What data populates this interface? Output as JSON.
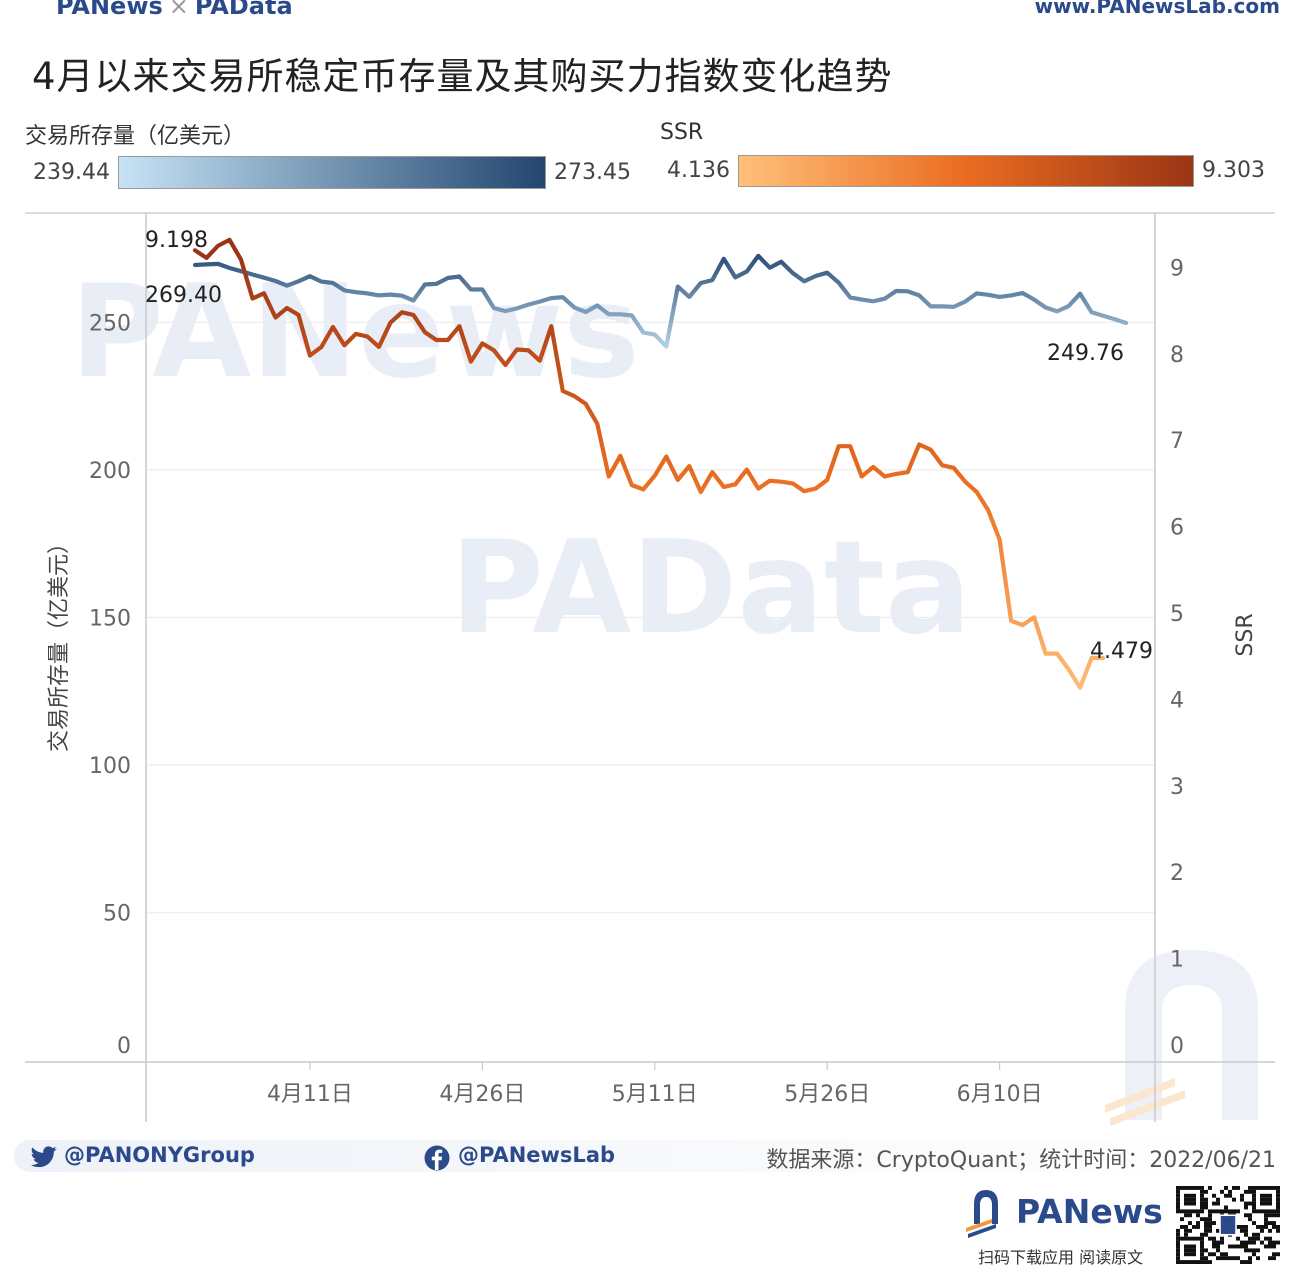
{
  "header": {
    "brand": "PANews",
    "brand_cross": "×",
    "brand2": "PAData",
    "site_url": "www.PANewsLab.com"
  },
  "title": "4月以来交易所稳定币存量及其购买力指数变化趋势",
  "legend": {
    "left": {
      "label": "交易所存量（亿美元）",
      "min": "239.44",
      "max": "273.45",
      "color_from": "#c6e3f6",
      "color_to": "#23466f"
    },
    "right": {
      "label": "SSR",
      "min": "4.136",
      "max": "9.303",
      "color_from": "#ffc07a",
      "color_mid": "#ea6c21",
      "color_to": "#9a3515"
    }
  },
  "watermarks": [
    "PANews",
    "PAData"
  ],
  "chart_data": {
    "type": "line",
    "title": "4月以来交易所稳定币存量及其购买力指数变化趋势",
    "x_ticks": [
      "4月11日",
      "4月26日",
      "5月11日",
      "5月26日",
      "6月10日"
    ],
    "y_left": {
      "label": "交易所存量（亿美元）",
      "ticks": [
        "0",
        "50",
        "100",
        "150",
        "200",
        "250"
      ],
      "lim": [
        0,
        260
      ]
    },
    "y_right": {
      "label": "SSR",
      "ticks": [
        "0",
        "1",
        "2",
        "3",
        "4",
        "5",
        "6",
        "7",
        "8",
        "9"
      ],
      "lim": [
        0,
        9.6
      ]
    },
    "series": [
      {
        "name": "交易所存量（亿美元）",
        "axis": "left",
        "start_label": "269.40",
        "end_label": "249.76",
        "values": [
          269.4,
          269.6,
          269.8,
          268.4,
          267.3,
          266.2,
          265.1,
          264.0,
          262.4,
          263.9,
          265.6,
          263.8,
          263.3,
          260.8,
          260.2,
          259.8,
          259.1,
          259.4,
          259.0,
          257.4,
          262.8,
          263.0,
          265.0,
          265.5,
          261.1,
          261.1,
          254.8,
          253.8,
          254.7,
          256.0,
          257.0,
          258.2,
          258.5,
          255.0,
          253.5,
          255.7,
          252.7,
          252.7,
          252.3,
          246.5,
          245.8,
          241.8,
          262.1,
          258.6,
          263.3,
          264.3,
          271.5,
          265.2,
          267.2,
          272.5,
          268.5,
          270.5,
          266.7,
          263.9,
          265.7,
          266.8,
          263.4,
          258.4,
          257.7,
          257.1,
          258.0,
          260.6,
          260.5,
          259.1,
          255.4,
          255.4,
          255.2,
          257.0,
          259.8,
          259.3,
          258.6,
          259.1,
          259.9,
          257.7,
          255.0,
          253.7,
          255.5,
          259.7,
          253.4,
          252.2,
          251.0,
          249.76
        ]
      },
      {
        "name": "SSR",
        "axis": "right",
        "start_label": "9.198",
        "end_label": "4.479",
        "values": [
          9.198,
          9.11,
          9.25,
          9.32,
          9.09,
          8.64,
          8.7,
          8.42,
          8.53,
          8.45,
          7.98,
          8.08,
          8.31,
          8.1,
          8.23,
          8.2,
          8.08,
          8.36,
          8.48,
          8.45,
          8.25,
          8.16,
          8.16,
          8.32,
          7.91,
          8.12,
          8.04,
          7.87,
          8.05,
          8.04,
          7.92,
          8.32,
          7.57,
          7.51,
          7.42,
          7.19,
          6.58,
          6.82,
          6.48,
          6.43,
          6.59,
          6.81,
          6.54,
          6.7,
          6.4,
          6.63,
          6.46,
          6.49,
          6.66,
          6.44,
          6.53,
          6.52,
          6.5,
          6.41,
          6.44,
          6.54,
          6.93,
          6.93,
          6.58,
          6.69,
          6.58,
          6.61,
          6.63,
          6.95,
          6.89,
          6.71,
          6.68,
          6.52,
          6.4,
          6.19,
          5.85,
          4.91,
          4.86,
          4.95,
          4.53,
          4.53,
          4.35,
          4.136,
          4.48,
          4.479
        ]
      }
    ]
  },
  "footer": {
    "twitter": "@PANONYGroup",
    "facebook": "@PANewsLab",
    "source": "数据来源：CryptoQuant；统计时间：2022/06/21",
    "brand": "PANews",
    "brand_sub": "扫码下载应用  阅读原文"
  }
}
